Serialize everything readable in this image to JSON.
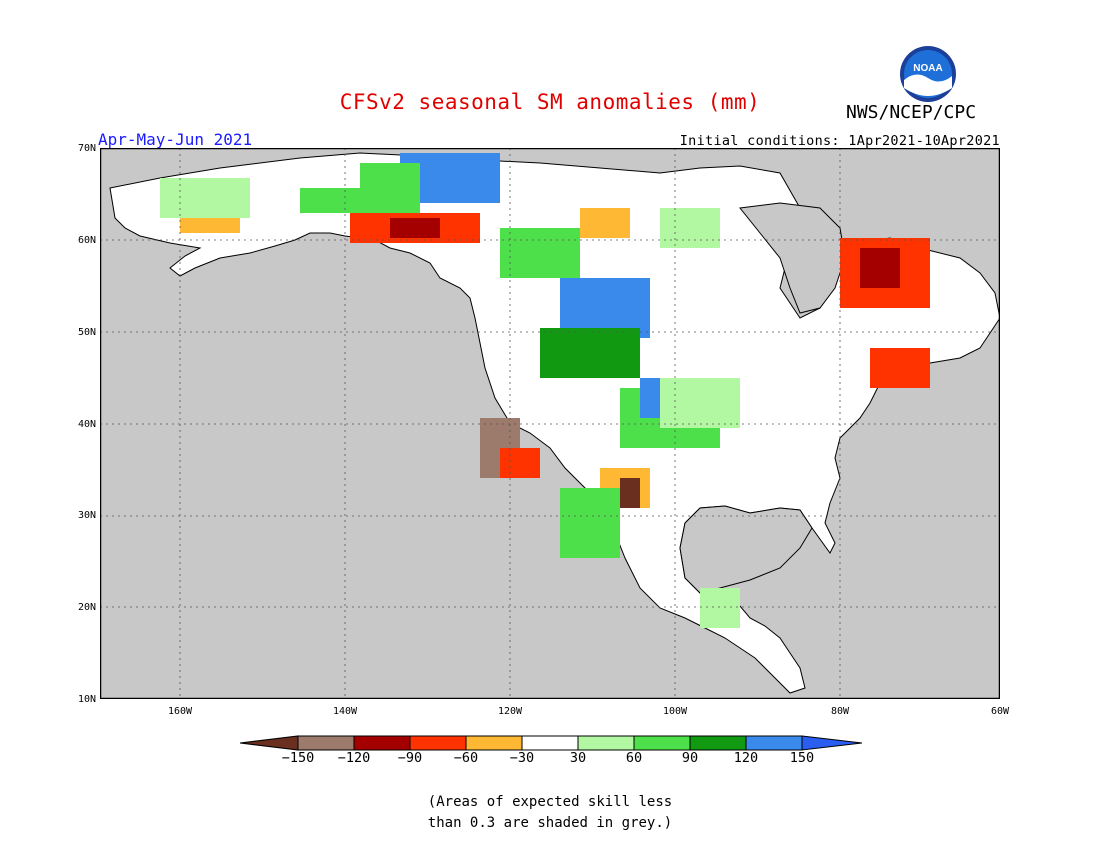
{
  "title": "CFSv2 seasonal SM anomalies (mm)",
  "agency": "NWS/NCEP/CPC",
  "logo_text": "NOAA",
  "period": "Apr-May-Jun 2021",
  "initial_conditions": "Initial conditions: 1Apr2021-10Apr2021",
  "lat_labels": [
    "70N",
    "60N",
    "50N",
    "40N",
    "30N",
    "20N",
    "10N"
  ],
  "lon_labels": [
    "160W",
    "140W",
    "120W",
    "100W",
    "80W",
    "60W"
  ],
  "colorbar": {
    "colors": [
      "#6b2f1f",
      "#9c7a6c",
      "#a50000",
      "#ff3300",
      "#ffb833",
      "#ffffff",
      "#b2f7a1",
      "#4ee04a",
      "#129912",
      "#3a8aeb",
      "#2a5ef0"
    ],
    "ticks": [
      "−150",
      "−120",
      "−90",
      "−60",
      "−30",
      "30",
      "60",
      "90",
      "120",
      "150"
    ]
  },
  "footnote": [
    "(Areas of expected skill less",
    "than 0.3 are shaded in grey.)"
  ],
  "colors": {
    "ocean_grey": "#c8c8c8",
    "land_white": "#ffffff",
    "title_red": "#e00000",
    "period_blue": "#1a1aff"
  }
}
